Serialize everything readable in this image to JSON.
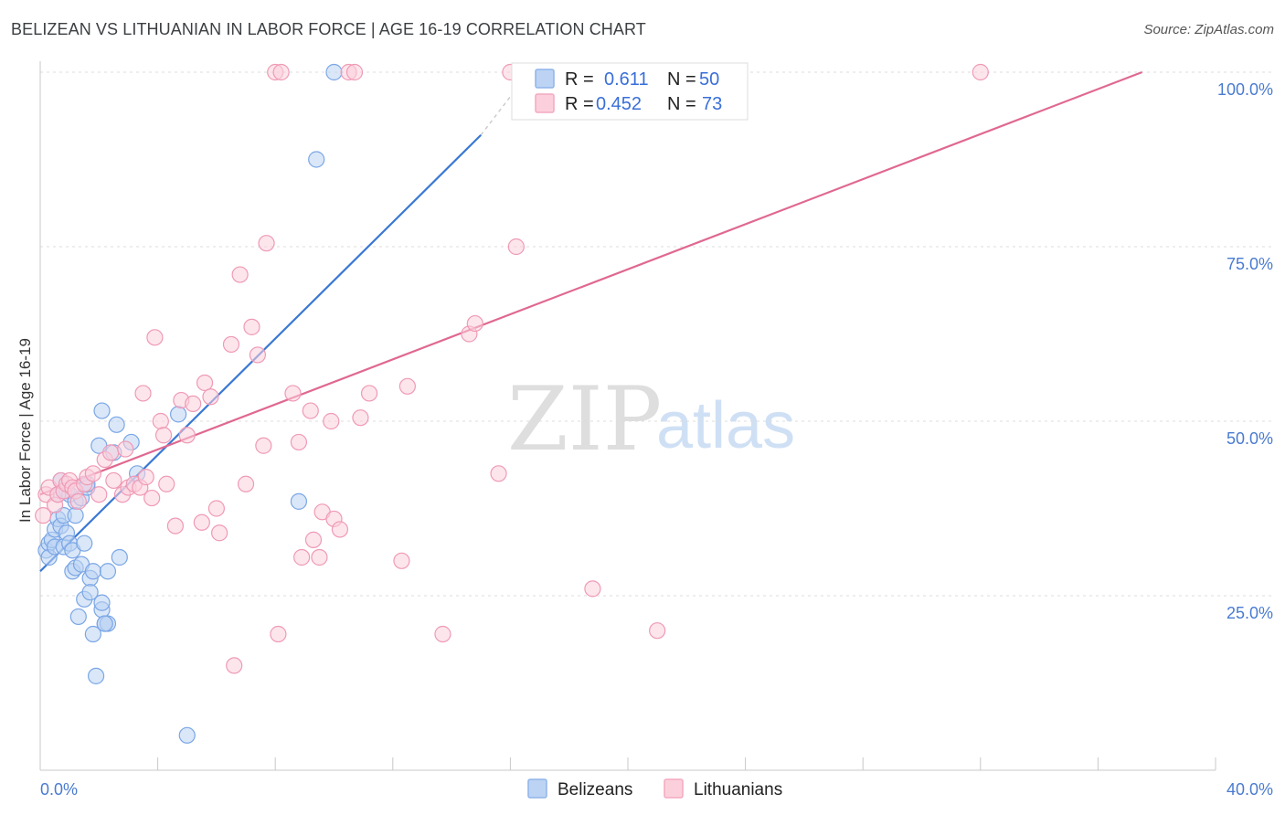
{
  "header": {
    "title": "BELIZEAN VS LITHUANIAN IN LABOR FORCE | AGE 16-19 CORRELATION CHART",
    "source": "Source: ZipAtlas.com"
  },
  "watermark": {
    "zip": "ZIP",
    "atlas": "atlas"
  },
  "legend": {
    "r_label": "R =",
    "n_label": "N =",
    "series": [
      {
        "name": "Belizeans",
        "r": "0.611",
        "n": "50",
        "color": "#8fb4ea",
        "line": "#3a78d4"
      },
      {
        "name": "Lithuanians",
        "r": "0.452",
        "n": "73",
        "color": "#f4a9c0",
        "line": "#e06890"
      }
    ]
  },
  "chart_data": {
    "type": "scatter",
    "title": "BELIZEAN VS LITHUANIAN IN LABOR FORCE | AGE 16-19 CORRELATION CHART",
    "xlabel": "",
    "ylabel": "In Labor Force | Age 16-19",
    "xlim": [
      0,
      40
    ],
    "ylim": [
      0,
      105
    ],
    "x_tick_labels": [
      "0.0%",
      "40.0%"
    ],
    "y_ticks": [
      25,
      50,
      75,
      100
    ],
    "y_tick_labels": [
      "25.0%",
      "50.0%",
      "75.0%",
      "100.0%"
    ],
    "series": [
      {
        "name": "Belizeans",
        "points": [
          [
            0.2,
            31.5
          ],
          [
            0.3,
            32.5
          ],
          [
            0.3,
            30.5
          ],
          [
            0.4,
            33
          ],
          [
            0.5,
            34.5
          ],
          [
            0.5,
            32
          ],
          [
            0.6,
            39.5
          ],
          [
            0.6,
            36
          ],
          [
            0.7,
            35
          ],
          [
            0.7,
            41.5
          ],
          [
            0.8,
            36.5
          ],
          [
            0.8,
            32
          ],
          [
            0.9,
            40
          ],
          [
            0.9,
            34
          ],
          [
            1.0,
            32.5
          ],
          [
            1.0,
            39.5
          ],
          [
            1.1,
            31.5
          ],
          [
            1.1,
            28.5
          ],
          [
            1.2,
            29
          ],
          [
            1.2,
            38.5
          ],
          [
            1.2,
            36.5
          ],
          [
            1.3,
            22
          ],
          [
            1.4,
            29.5
          ],
          [
            1.4,
            39
          ],
          [
            1.5,
            32.5
          ],
          [
            1.5,
            24.5
          ],
          [
            1.6,
            40.5
          ],
          [
            1.6,
            41
          ],
          [
            1.7,
            27.5
          ],
          [
            1.7,
            25.5
          ],
          [
            1.8,
            19.5
          ],
          [
            1.8,
            28.5
          ],
          [
            1.9,
            13.5
          ],
          [
            2.0,
            46.5
          ],
          [
            2.1,
            23
          ],
          [
            2.1,
            24
          ],
          [
            2.2,
            21
          ],
          [
            2.3,
            21
          ],
          [
            2.1,
            51.5
          ],
          [
            2.2,
            21
          ],
          [
            2.3,
            28.5
          ],
          [
            2.5,
            45.5
          ],
          [
            2.6,
            49.5
          ],
          [
            2.7,
            30.5
          ],
          [
            3.1,
            47
          ],
          [
            3.3,
            42.5
          ],
          [
            4.7,
            51
          ],
          [
            5.0,
            5
          ],
          [
            8.8,
            38.5
          ],
          [
            9.4,
            87.5
          ],
          [
            10.0,
            100
          ]
        ]
      },
      {
        "name": "Lithuanians",
        "points": [
          [
            0.1,
            36.5
          ],
          [
            0.2,
            39.5
          ],
          [
            0.3,
            40.5
          ],
          [
            0.5,
            38
          ],
          [
            0.6,
            39.5
          ],
          [
            0.7,
            41.5
          ],
          [
            0.8,
            40
          ],
          [
            0.9,
            41
          ],
          [
            1.0,
            41.5
          ],
          [
            1.1,
            40.5
          ],
          [
            1.2,
            40
          ],
          [
            1.3,
            38.5
          ],
          [
            1.5,
            41
          ],
          [
            1.6,
            42
          ],
          [
            1.8,
            42.5
          ],
          [
            2.0,
            39.5
          ],
          [
            2.2,
            44.5
          ],
          [
            2.4,
            45.5
          ],
          [
            2.5,
            41.5
          ],
          [
            2.8,
            39.5
          ],
          [
            2.9,
            46
          ],
          [
            3.0,
            40.5
          ],
          [
            3.2,
            41
          ],
          [
            3.4,
            40.5
          ],
          [
            3.5,
            54
          ],
          [
            3.6,
            42
          ],
          [
            3.8,
            39
          ],
          [
            3.9,
            62
          ],
          [
            4.1,
            50
          ],
          [
            4.2,
            48
          ],
          [
            4.3,
            41
          ],
          [
            4.6,
            35
          ],
          [
            4.8,
            53
          ],
          [
            5.0,
            48
          ],
          [
            5.2,
            52.5
          ],
          [
            5.5,
            35.5
          ],
          [
            5.6,
            55.5
          ],
          [
            5.8,
            53.5
          ],
          [
            6.0,
            37.5
          ],
          [
            6.1,
            34
          ],
          [
            6.5,
            61
          ],
          [
            6.6,
            15
          ],
          [
            6.8,
            71
          ],
          [
            7.0,
            41
          ],
          [
            7.2,
            63.5
          ],
          [
            7.4,
            59.5
          ],
          [
            7.6,
            46.5
          ],
          [
            7.7,
            75.5
          ],
          [
            8.0,
            100
          ],
          [
            8.2,
            100
          ],
          [
            8.1,
            19.5
          ],
          [
            8.6,
            54
          ],
          [
            8.8,
            47
          ],
          [
            8.9,
            30.5
          ],
          [
            9.2,
            51.5
          ],
          [
            9.3,
            33
          ],
          [
            9.5,
            30.5
          ],
          [
            9.6,
            37
          ],
          [
            9.9,
            50
          ],
          [
            10.0,
            36
          ],
          [
            10.2,
            34.5
          ],
          [
            10.5,
            100
          ],
          [
            10.7,
            100
          ],
          [
            10.9,
            50.5
          ],
          [
            11.2,
            54
          ],
          [
            12.3,
            30
          ],
          [
            12.5,
            55
          ],
          [
            13.7,
            19.5
          ],
          [
            14.6,
            62.5
          ],
          [
            14.8,
            64
          ],
          [
            15.6,
            42.5
          ],
          [
            16.0,
            100
          ],
          [
            16.2,
            75
          ],
          [
            18.8,
            26
          ],
          [
            21.0,
            20
          ],
          [
            32.0,
            100
          ]
        ]
      }
    ],
    "trend_lines": [
      {
        "name": "Belizeans",
        "x": [
          0,
          15.0
        ],
        "y": [
          28.5,
          91.0
        ],
        "dashed_to": [
          16.0,
          96.5
        ]
      },
      {
        "name": "Lithuanians",
        "x": [
          0,
          37.5
        ],
        "y": [
          39.5,
          100.0
        ]
      }
    ]
  }
}
